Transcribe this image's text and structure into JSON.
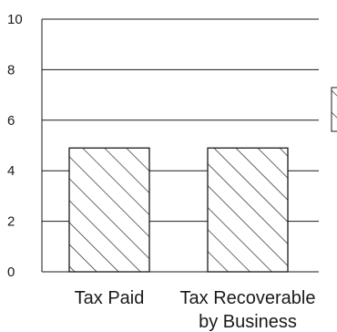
{
  "chart_data": {
    "type": "bar",
    "categories": [
      [
        "Tax Paid"
      ],
      [
        "Tax Recoverable",
        "by Business"
      ]
    ],
    "values": [
      4.9,
      4.9
    ],
    "ylim": [
      0,
      10
    ],
    "yticks": [
      0,
      2,
      4,
      6,
      8,
      10
    ],
    "grid": true,
    "bar_fill": "hatched",
    "colors": {
      "bar_stroke": "#1a1a1a",
      "hatch": "#1a1a1a",
      "grid": "#1a1a1a",
      "text": "#1a1a1a",
      "background": "#ffffff"
    }
  }
}
